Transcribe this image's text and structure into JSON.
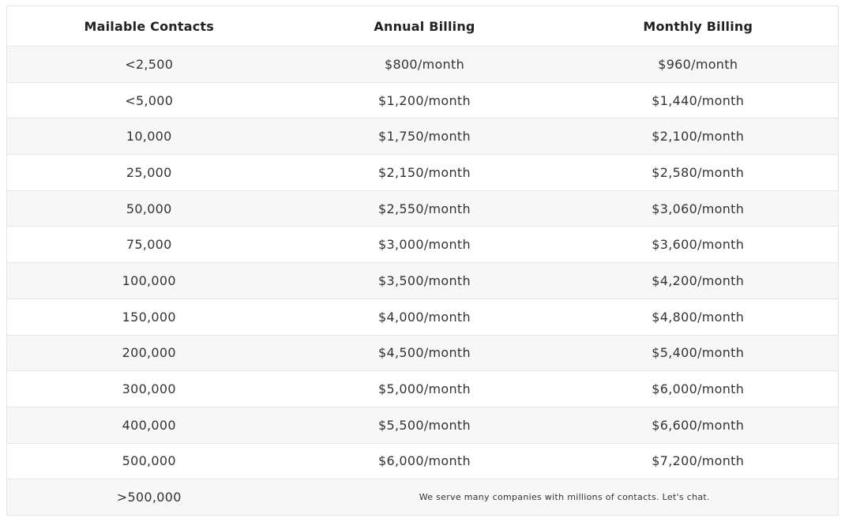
{
  "table": {
    "headers": [
      "Mailable Contacts",
      "Annual Billing",
      "Monthly Billing"
    ],
    "rows": [
      [
        "<2,500",
        "$800/month",
        "$960/month"
      ],
      [
        "<5,000",
        "$1,200/month",
        "$1,440/month"
      ],
      [
        "10,000",
        "$1,750/month",
        "$2,100/month"
      ],
      [
        "25,000",
        "$2,150/month",
        "$2,580/month"
      ],
      [
        "50,000",
        "$2,550/month",
        "$3,060/month"
      ],
      [
        "75,000",
        "$3,000/month",
        "$3,600/month"
      ],
      [
        "100,000",
        "$3,500/month",
        "$4,200/month"
      ],
      [
        "150,000",
        "$4,000/month",
        "$4,800/month"
      ],
      [
        "200,000",
        "$4,500/month",
        "$5,400/month"
      ],
      [
        "300,000",
        "$5,000/month",
        "$6,000/month"
      ],
      [
        "400,000",
        "$5,500/month",
        "$6,600/month"
      ],
      [
        "500,000",
        "$6,000/month",
        "$7,200/month"
      ],
      [
        ">500,000",
        "We serve many companies with millions of contacts. Let's chat."
      ]
    ]
  }
}
